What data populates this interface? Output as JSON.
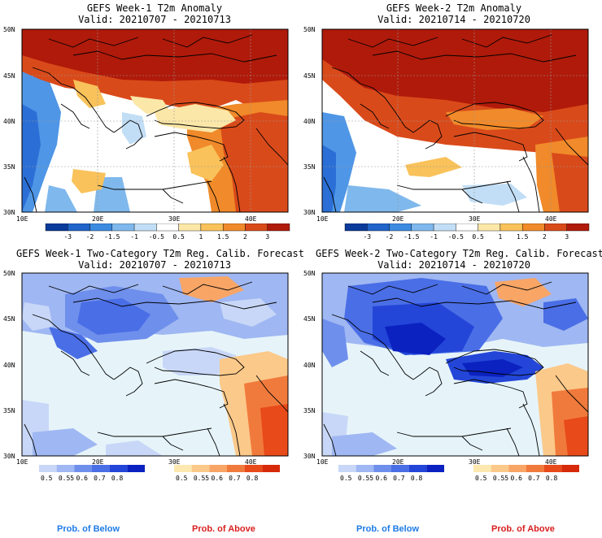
{
  "panels": [
    {
      "id": "tl",
      "title": "GEFS Week-1 T2m Anomaly",
      "valid": "Valid: 20210707 - 20210713",
      "kind": "anomaly",
      "lat_labels": [
        "50N",
        "45N",
        "40N",
        "35N",
        "30N"
      ],
      "lon_labels": [
        "10E",
        "20E",
        "30E",
        "40E"
      ]
    },
    {
      "id": "tr",
      "title": "GEFS Week-2 T2m Anomaly",
      "valid": "Valid: 20210714 - 20210720",
      "kind": "anomaly",
      "lat_labels": [
        "50N",
        "45N",
        "40N",
        "35N",
        "30N"
      ],
      "lon_labels": [
        "10E",
        "20E",
        "30E",
        "40E"
      ]
    },
    {
      "id": "bl",
      "title": "GEFS Week-1 Two-Category T2m Reg. Calib. Forecast",
      "valid": "Valid: 20210707 - 20210713",
      "kind": "prob",
      "lat_labels": [
        "50N",
        "45N",
        "40N",
        "35N",
        "30N"
      ],
      "lon_labels": [
        "10E",
        "20E",
        "30E",
        "40E"
      ]
    },
    {
      "id": "br",
      "title": "GEFS Week-2 Two-Category T2m Reg. Calib. Forecast",
      "valid": "Valid: 20210714 - 20210720",
      "kind": "prob",
      "lat_labels": [
        "50N",
        "45N",
        "40N",
        "35N",
        "30N"
      ],
      "lon_labels": [
        "10E",
        "20E",
        "30E",
        "40E"
      ]
    }
  ],
  "anomaly_colorbar": {
    "labels": [
      "-3",
      "-2",
      "-1.5",
      "-1",
      "-0.5",
      "0.5",
      "1",
      "1.5",
      "2",
      "3"
    ],
    "colors": [
      "#0a3a9a",
      "#1f64c8",
      "#3c8be0",
      "#7fb8ec",
      "#c2def6",
      "#ffffff",
      "#fbe7a8",
      "#f9c25a",
      "#f08a2a",
      "#d94a1a",
      "#b01a0a"
    ]
  },
  "prob_below_colorbar": {
    "labels": [
      "0.5",
      "0.55",
      "0.6",
      "0.7",
      "0.8"
    ],
    "colors": [
      "#c8d7f7",
      "#9fb7f2",
      "#6f8fec",
      "#4a6ee6",
      "#2346d8",
      "#0b22c0"
    ]
  },
  "prob_above_colorbar": {
    "labels": [
      "0.5",
      "0.55",
      "0.6",
      "0.7",
      "0.8"
    ],
    "colors": [
      "#fde9b0",
      "#fbc98a",
      "#f8a566",
      "#f07a3c",
      "#e84a1a",
      "#d62a0a"
    ]
  },
  "colors": {
    "anomaly_warm": "#b81a0a",
    "anomaly_cold": "#2b6fd6",
    "prob_ocean": "#e6f4fa",
    "prob_below_label": "#1e7be6",
    "prob_above_label": "#d81e1e"
  },
  "footer": {
    "left_below": "Prob. of Below",
    "left_above": "Prob. of Above",
    "right_below": "Prob. of Below",
    "right_above": "Prob. of Above"
  }
}
